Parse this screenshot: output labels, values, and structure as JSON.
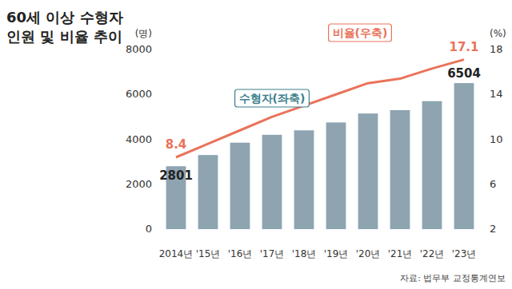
{
  "chart_data": {
    "type": "bar",
    "title": "60세 이상 수형자\n인원 및 비율 추이",
    "ylabel": "(명)",
    "y2label": "(%)",
    "source": "자료: 법무부 교정통계연보",
    "categories": [
      "2014년",
      "'15년",
      "'16년",
      "'17년",
      "'18년",
      "'19년",
      "'20년",
      "'21년",
      "'22년",
      "'23년"
    ],
    "series": [
      {
        "name": "수형자(좌축)",
        "type": "bar",
        "color": "#8ea4b1",
        "values": [
          2801,
          3300,
          3850,
          4200,
          4400,
          4750,
          5150,
          5300,
          5700,
          6504
        ],
        "value_labels": [
          "2801",
          null,
          null,
          null,
          null,
          null,
          null,
          null,
          null,
          "6504"
        ]
      },
      {
        "name": "비율(우축)",
        "type": "line",
        "axis": "y2",
        "color": "#e9735b",
        "values": [
          8.4,
          9.6,
          10.8,
          12.0,
          13.0,
          14.0,
          15.0,
          15.4,
          16.3,
          17.1
        ],
        "value_labels": [
          "8.4",
          null,
          null,
          null,
          null,
          null,
          null,
          null,
          null,
          "17.1"
        ]
      }
    ],
    "ylim": [
      0,
      8000
    ],
    "yticks": [
      0,
      2000,
      4000,
      6000,
      8000
    ],
    "y2lim": [
      2,
      18
    ],
    "y2ticks": [
      2,
      6,
      10,
      14,
      18
    ],
    "grid": false,
    "data_labels": true
  }
}
